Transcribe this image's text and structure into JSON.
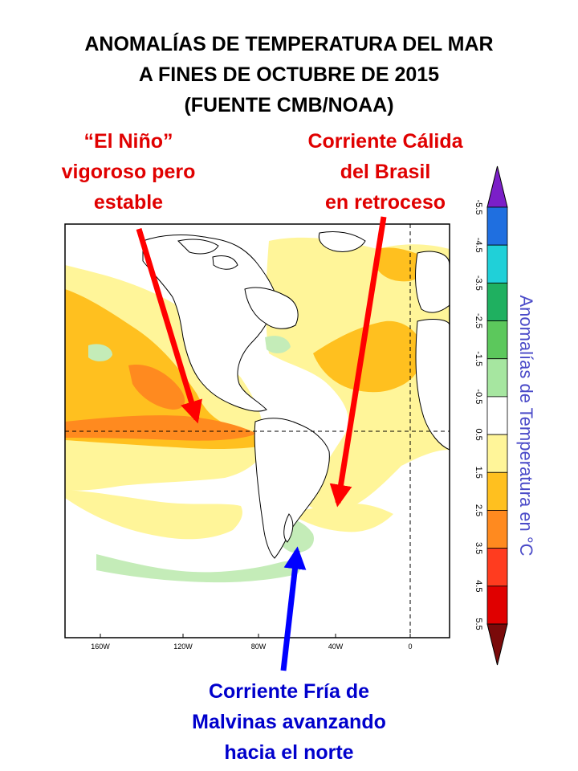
{
  "title": {
    "line1": "ANOMALÍAS DE TEMPERATURA DEL MAR",
    "line2": "A FINES DE OCTUBRE DE 2015",
    "line3": "(FUENTE CMB/NOAA)"
  },
  "annotations": {
    "nino": [
      "“El Niño”",
      "vigoroso pero",
      "estable"
    ],
    "brasil": [
      "Corriente Cálida",
      "del Brasil",
      "en retroceso"
    ],
    "malvinas": [
      "Corriente Fría de",
      "Malvinas avanzando",
      "hacia el norte"
    ]
  },
  "map": {
    "x_ticks": [
      "160W",
      "120W",
      "80W",
      "40W",
      "0"
    ]
  },
  "colorbar": {
    "title": "Anomalías de Temperatura en °C",
    "labels": [
      "-5.5",
      "-4.5",
      "-3.5",
      "-2.5",
      "-1.5",
      "-0.5",
      "0.5",
      "1.5",
      "2.5",
      "3.5",
      "4.5",
      "5.5"
    ],
    "colors": [
      "#7b1fc8",
      "#1f6fe0",
      "#20d0d8",
      "#1fb060",
      "#5cc85c",
      "#a6e6a0",
      "#ffffff",
      "#fff599",
      "#ffc01f",
      "#ff8a1f",
      "#ff3c1f",
      "#e00000",
      "#7a0a0a"
    ]
  },
  "colors": {
    "arrow_red": "#ff0000",
    "arrow_blue": "#0000ff"
  }
}
